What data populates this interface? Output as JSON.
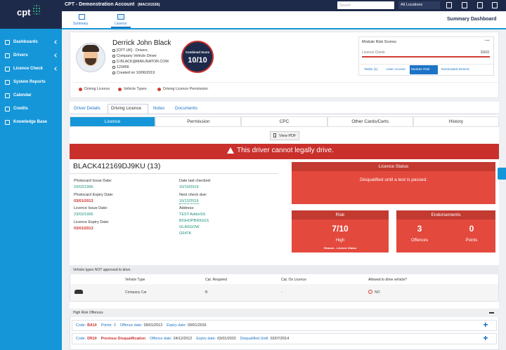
{
  "header": {
    "account": "CPT - Demonstration Account",
    "account_code": "(MAC01536)",
    "search": "Search",
    "location": "All Locations",
    "page_title": "Summary Dashboard"
  },
  "logo": "cpt",
  "sidebar": [
    "Dashboards",
    "Drivers",
    "Licence Check",
    "System Reports",
    "Calendar",
    "Credits",
    "Knowledge Base"
  ],
  "subnav": [
    "Summary",
    "Licence"
  ],
  "driver": {
    "name": "Derrick John Black",
    "details": [
      "[CPT UK] - Drivers",
      "Company Vehicle Driver",
      "D.BLACK@MAILINATOR.COM",
      "123456",
      "Created on 10/06/2019"
    ]
  },
  "combined_score": {
    "label": "Combined Score",
    "value": "10/10"
  },
  "module_risk": {
    "title": "Module Risk Scores",
    "menu": "···",
    "row_label": "Licence Check",
    "row_value": "10/10",
    "tabs": [
      "Tasks (1)",
      "User Access",
      "Module Risk",
      "Nominated Drivers"
    ]
  },
  "chips": [
    "Driving Licence",
    "Vehicle Types",
    "Driving Licence Permission"
  ],
  "tabs": [
    "Driver Details",
    "Driving Licence",
    "Notes",
    "Documents"
  ],
  "subtabs": [
    "Licence",
    "Permission",
    "CPC",
    "Other Cards/Certs",
    "History"
  ],
  "view_pdf": "View PDF",
  "banner": "This driver cannot legally drive.",
  "licence": {
    "number": "BLACK412169DJ9KU (13)",
    "fields": [
      {
        "label": "Photocard Issue Date:",
        "value": "23/02/1996"
      },
      {
        "label": "Photocard Expiry Date:",
        "value": "03/01/2013"
      },
      {
        "label": "Licence Issue Date:",
        "value": "23/02/1996"
      },
      {
        "label": "Licence Expiry Date:",
        "value": "03/01/2013"
      }
    ],
    "checks": [
      {
        "label": "Date last checked:",
        "value": "10/10/2019"
      },
      {
        "label": "Next check due:",
        "value": "10/12/2019"
      }
    ],
    "address_label": "Address:",
    "address": [
      "TEST AddreSS",
      "BISHOPBRIGGS",
      "GLASGOW",
      "G64TK"
    ]
  },
  "status": {
    "title": "Licence Status",
    "text": "Disqualified until a test is passed."
  },
  "risk": {
    "title": "Risk",
    "score": "7/10",
    "level": "High",
    "reason": "Reason - Licence Status"
  },
  "endorsements": {
    "title": "Endorsements",
    "offences": "3",
    "offences_label": "Offences",
    "points": "0",
    "points_label": "Points"
  },
  "vehicles": {
    "title": "Vehicle types NOT approved to drive.",
    "columns": [
      "Vehicle Type",
      "Cat. Required",
      "Cat. On Licence",
      "Allowed to drive vehicle?"
    ],
    "rows": [
      [
        "Company Car",
        "B",
        "-",
        "NO"
      ]
    ]
  },
  "offences": {
    "title": "High Risk Offences",
    "rows": [
      [
        {
          "label": "Code:",
          "value": "BA10"
        },
        {
          "label": "Points:",
          "value": "3"
        },
        {
          "label": "Offence date:",
          "value": "09/01/2013"
        },
        {
          "label": "Expiry date:",
          "value": "09/01/2016"
        }
      ],
      [
        {
          "label": "Code:",
          "value": "DR10"
        },
        {
          "value": "Previous Disqualification"
        },
        {
          "label": "Offence date:",
          "value": "24/12/2012"
        },
        {
          "label": "Expiry date:",
          "value": "03/01/2023"
        },
        {
          "label": "Disqualified Until:",
          "value": "02/07/2014"
        }
      ]
    ]
  }
}
